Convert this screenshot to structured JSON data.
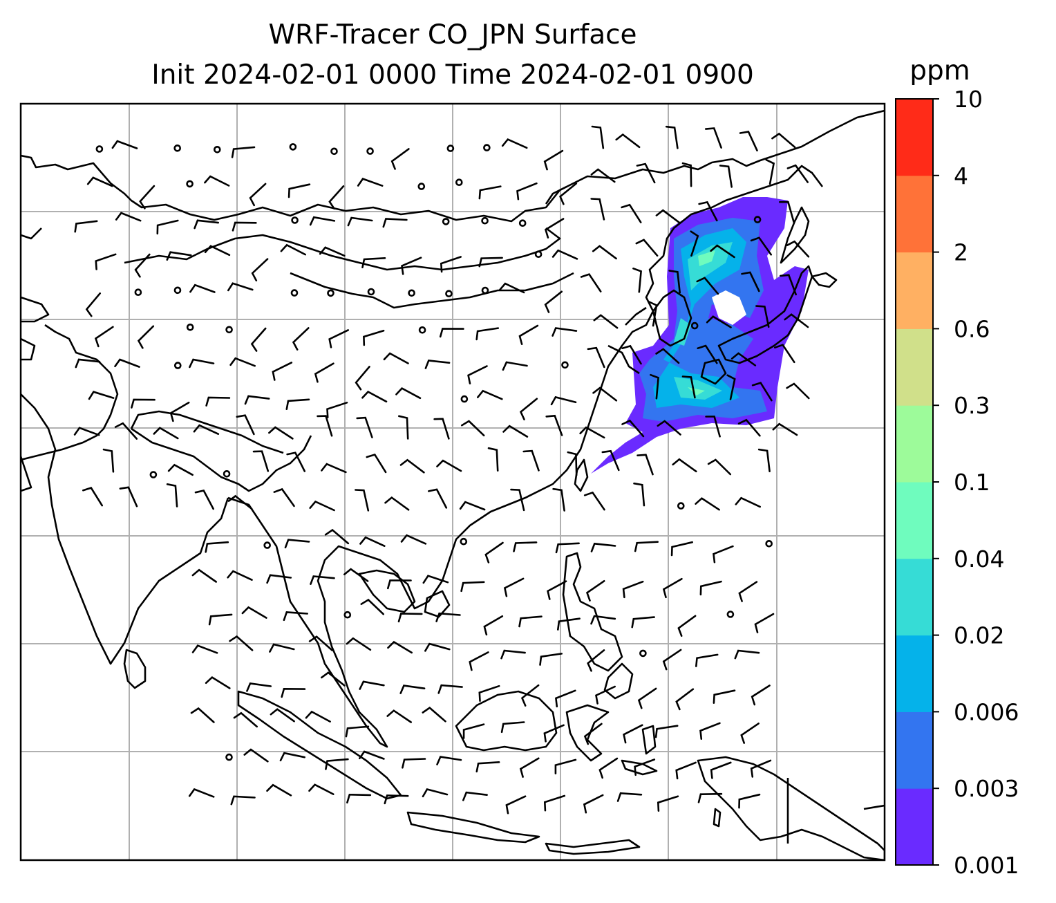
{
  "title": {
    "line1": "WRF-Tracer CO_JPN Surface",
    "line2": "Init 2024-02-01 0000 Time 2024-02-01 0900"
  },
  "colorbar": {
    "unit": "ppm",
    "levels": [
      "0.001",
      "0.003",
      "0.006",
      "0.02",
      "0.04",
      "0.1",
      "0.3",
      "0.6",
      "2",
      "4",
      "10"
    ],
    "colors": [
      "#6a2bff",
      "#3375f0",
      "#05b2ea",
      "#36dcd6",
      "#6ffcbe",
      "#9dfb9a",
      "#d0e08a",
      "#ffb062",
      "#ff7238",
      "#ff2b18"
    ]
  },
  "map": {
    "region": "East and Southeast Asia",
    "layers": [
      "coastlines",
      "gridlines",
      "wind-barbs",
      "tracer-concentration-contours"
    ],
    "plume_region": "Japan and Sea of Japan, extending southwest toward the East China Sea"
  }
}
